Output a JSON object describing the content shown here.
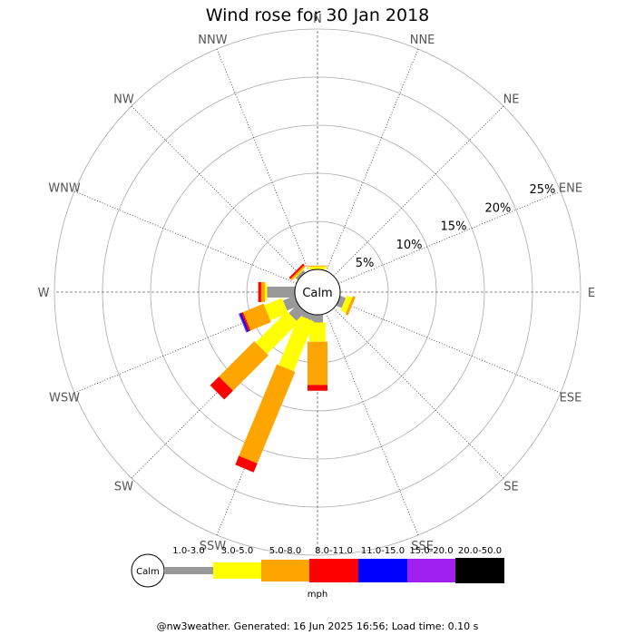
{
  "chart_data": {
    "type": "wind-rose",
    "title": "Wind rose for 30 Jan 2018",
    "directions": [
      "N",
      "NNE",
      "NE",
      "ENE",
      "E",
      "ESE",
      "SE",
      "SSE",
      "S",
      "SSW",
      "SW",
      "WSW",
      "W",
      "WNW",
      "NW",
      "NNW"
    ],
    "radial_ticks": [
      "5%",
      "10%",
      "15%",
      "20%",
      "25%"
    ],
    "radial_max_percent": 25,
    "calm_label": "Calm",
    "unit": "mph",
    "speed_bins": [
      {
        "label": "1.0-3.0",
        "color": "#999999"
      },
      {
        "label": "3.0-5.0",
        "color": "#ffff00"
      },
      {
        "label": "5.0-8.0",
        "color": "#ffa500"
      },
      {
        "label": "8.0-11.0",
        "color": "#ff0000"
      },
      {
        "label": "11.0-15.0",
        "color": "#0000ff"
      },
      {
        "label": "15.0-20.0",
        "color": "#a020f0"
      },
      {
        "label": "20.0-50.0",
        "color": "#000000"
      }
    ],
    "series": [
      {
        "direction": "N",
        "values": [
          0.0,
          0.3,
          0.1,
          0,
          0,
          0,
          0
        ]
      },
      {
        "direction": "ESE",
        "values": [
          0.6,
          0.6,
          0.3,
          0,
          0,
          0,
          0
        ]
      },
      {
        "direction": "S",
        "values": [
          0.8,
          2.0,
          4.5,
          0.6,
          0,
          0,
          0
        ]
      },
      {
        "direction": "SSW",
        "values": [
          0.6,
          5.6,
          10.3,
          1.0,
          0,
          0,
          0
        ]
      },
      {
        "direction": "SW",
        "values": [
          1.3,
          4.6,
          5.2,
          1.3,
          0,
          0,
          0
        ]
      },
      {
        "direction": "WSW",
        "values": [
          1.3,
          2.0,
          2.3,
          0.2,
          0.2,
          0.1,
          0
        ]
      },
      {
        "direction": "W",
        "values": [
          2.9,
          0.2,
          0.4,
          0.3,
          0,
          0,
          0
        ]
      },
      {
        "direction": "NW",
        "values": [
          0.3,
          0.1,
          0.2,
          0.2,
          0,
          0,
          0
        ]
      }
    ]
  },
  "footer": {
    "text": "@nw3weather. Generated: 16 Jun 2025 16:56; Load time: 0.10 s"
  }
}
